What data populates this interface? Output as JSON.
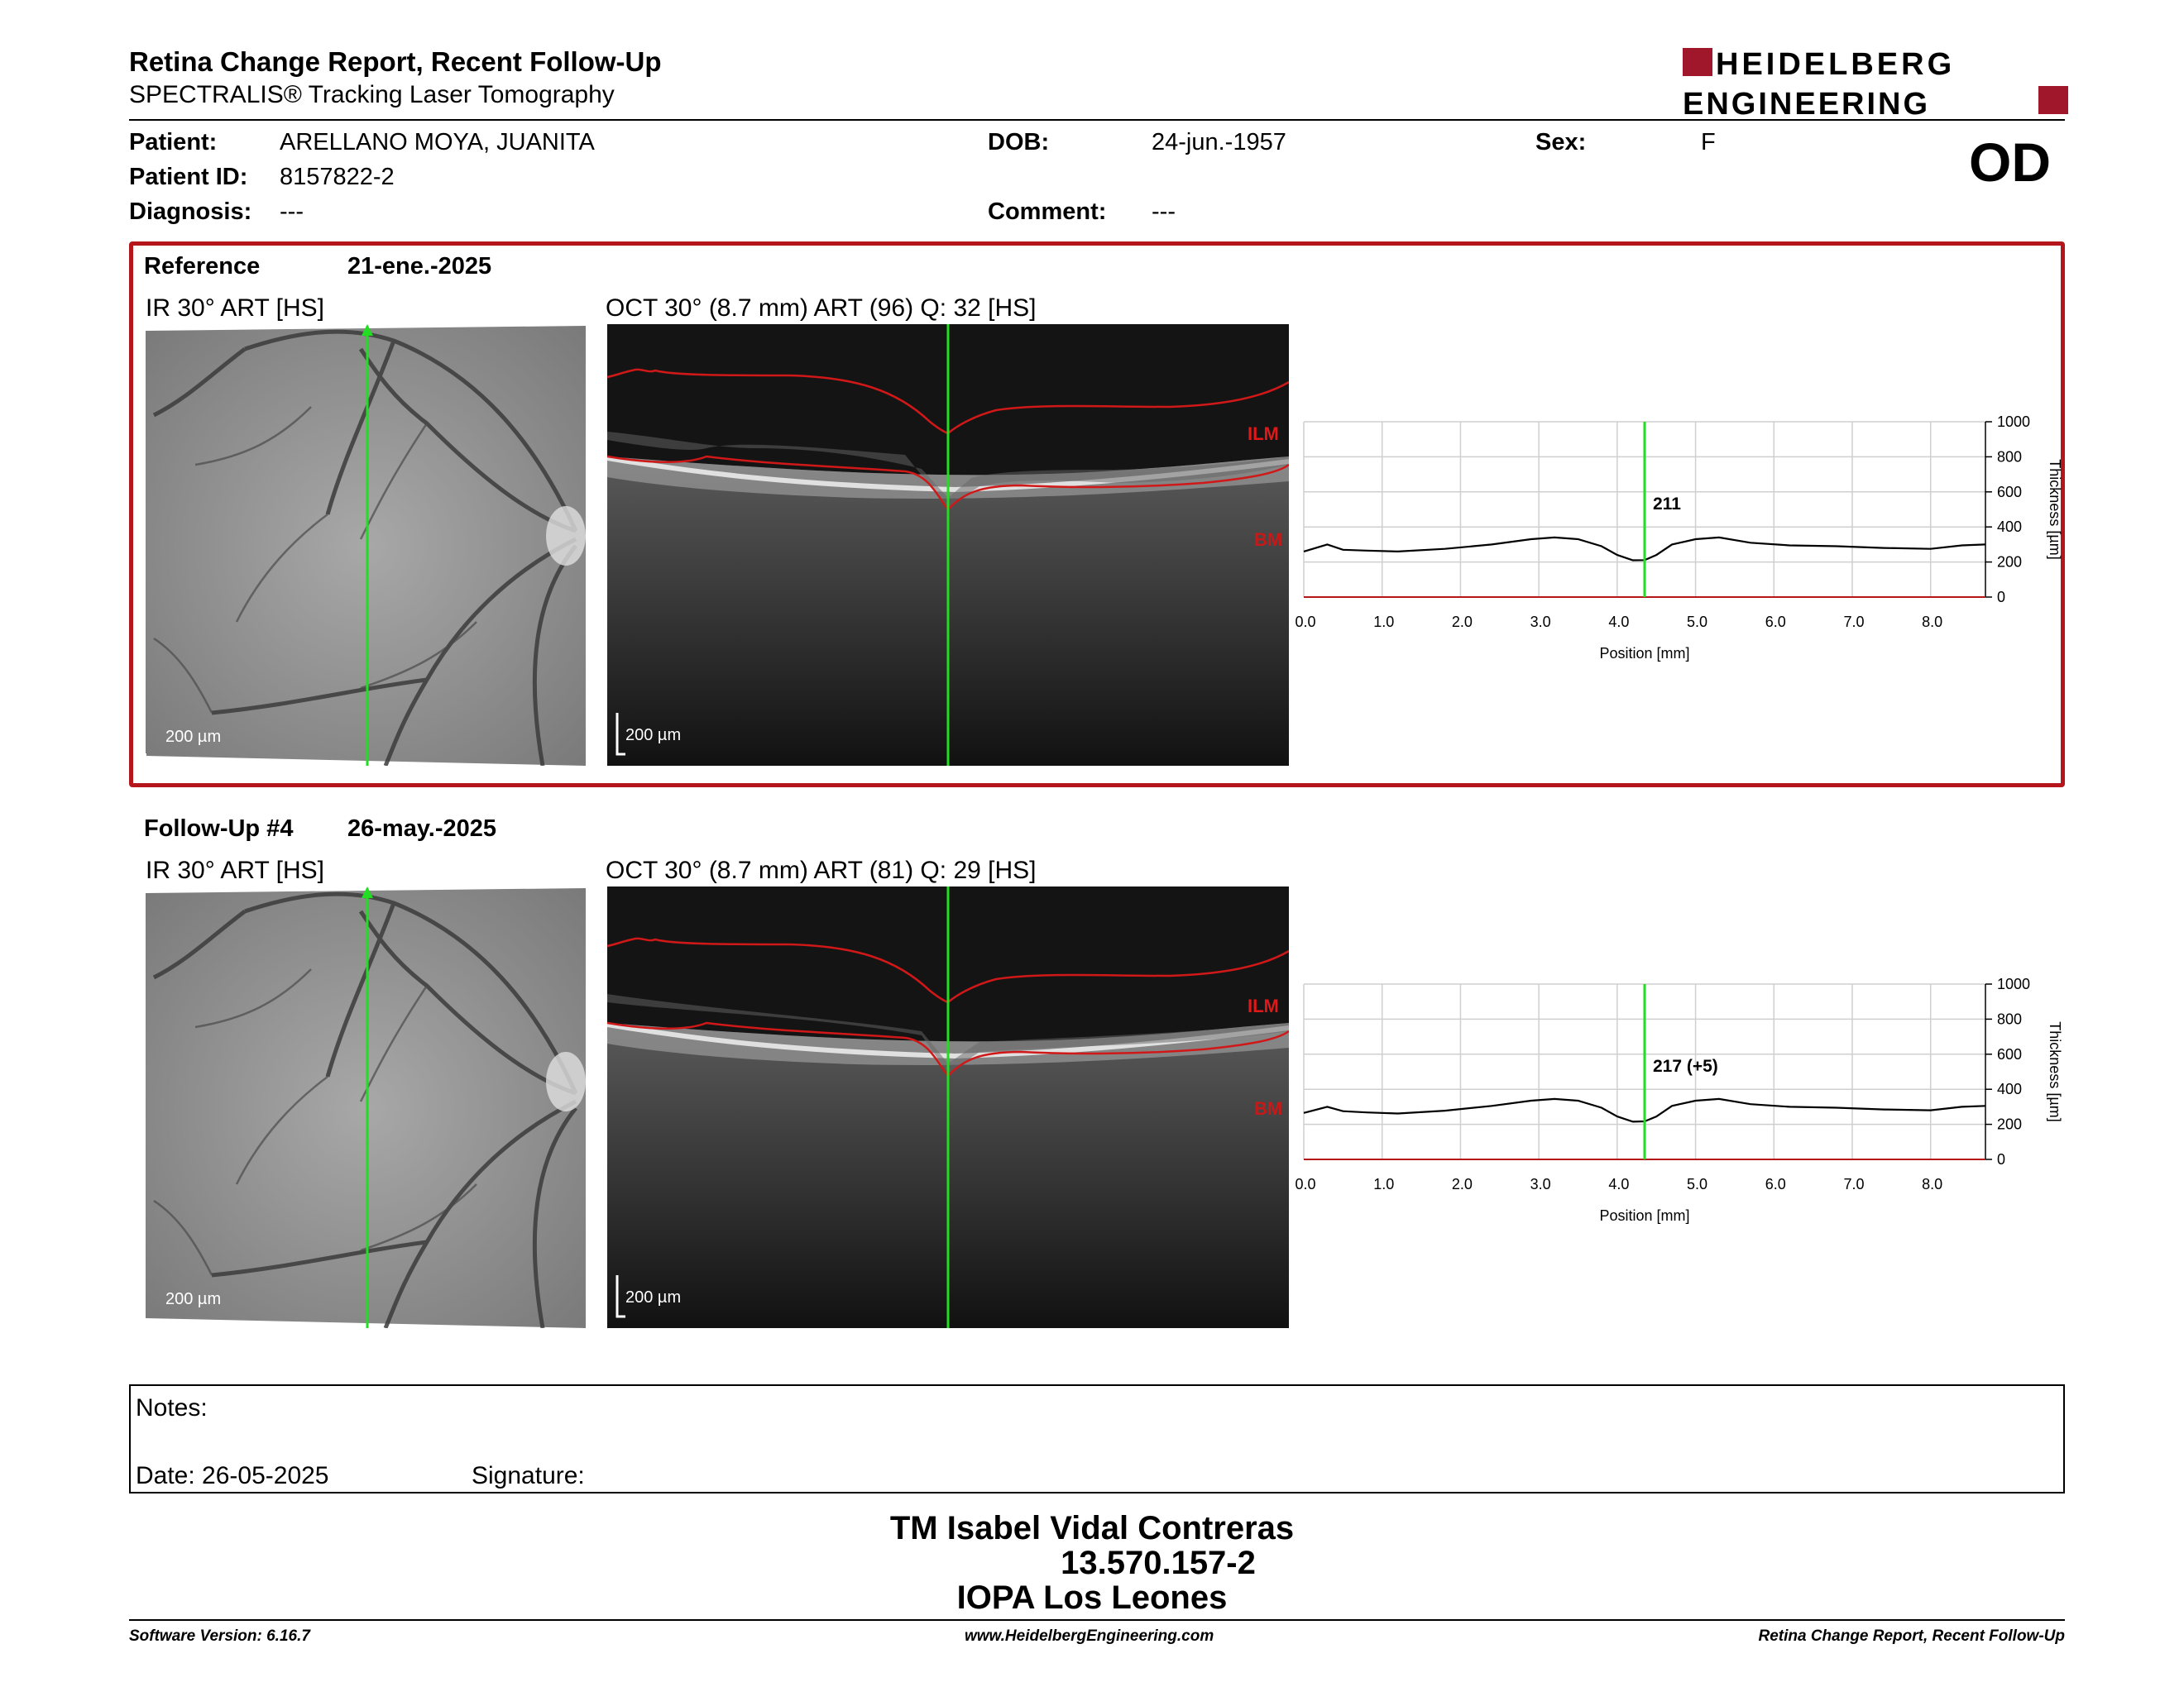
{
  "header": {
    "title": "Retina Change Report, Recent Follow-Up",
    "subtitle": "SPECTRALIS® Tracking Laser Tomography",
    "logo_line1": "HEIDELBERG",
    "logo_line2": "ENGINEERING",
    "brand_color": "#a0162a"
  },
  "patient": {
    "name_label": "Patient:",
    "name": "ARELLANO MOYA, JUANITA",
    "id_label": "Patient ID:",
    "id": "8157822-2",
    "diagnosis_label": "Diagnosis:",
    "diagnosis": "---",
    "dob_label": "DOB:",
    "dob": "24-jun.-1957",
    "comment_label": "Comment:",
    "comment": "---",
    "sex_label": "Sex:",
    "sex": "F",
    "eye": "OD"
  },
  "reference": {
    "label": "Reference",
    "date": "21-ene.-2025",
    "ir_label": "IR 30° ART [HS]",
    "oct_label": "OCT 30° (8.7 mm) ART (96) Q: 32 [HS]",
    "scale": "200 µm",
    "ilm": "ILM",
    "bm": "BM",
    "highlight_color": "#b5161b"
  },
  "followup": {
    "label": "Follow-Up #4",
    "date": "26-may.-2025",
    "ir_label": "IR 30° ART [HS]",
    "oct_label": "OCT 30° (8.7 mm) ART (81) Q: 29 [HS]",
    "scale": "200 µm",
    "ilm": "ILM",
    "bm": "BM"
  },
  "chart_data": [
    {
      "type": "line",
      "xlabel": "Position [mm]",
      "ylabel": "Thickness [µm]",
      "xlim": [
        0,
        8.7
      ],
      "ylim": [
        0,
        1000
      ],
      "xticks": [
        "0.0",
        "1.0",
        "2.0",
        "3.0",
        "4.0",
        "5.0",
        "6.0",
        "7.0",
        "8.0"
      ],
      "yticks": [
        "0",
        "200",
        "400",
        "600",
        "800",
        "1000"
      ],
      "marker_x": 4.35,
      "marker_label": "211",
      "grid": true,
      "x": [
        0.0,
        0.3,
        0.5,
        0.8,
        1.2,
        1.8,
        2.4,
        2.9,
        3.2,
        3.5,
        3.8,
        4.0,
        4.2,
        4.35,
        4.5,
        4.7,
        5.0,
        5.3,
        5.7,
        6.2,
        6.8,
        7.4,
        8.0,
        8.4,
        8.7
      ],
      "y": [
        260,
        300,
        270,
        265,
        260,
        275,
        300,
        330,
        340,
        330,
        290,
        240,
        210,
        211,
        240,
        300,
        330,
        340,
        310,
        295,
        290,
        280,
        275,
        295,
        300
      ]
    },
    {
      "type": "line",
      "xlabel": "Position [mm]",
      "ylabel": "Thickness [µm]",
      "xlim": [
        0,
        8.7
      ],
      "ylim": [
        0,
        1000
      ],
      "xticks": [
        "0.0",
        "1.0",
        "2.0",
        "3.0",
        "4.0",
        "5.0",
        "6.0",
        "7.0",
        "8.0"
      ],
      "yticks": [
        "0",
        "200",
        "400",
        "600",
        "800",
        "1000"
      ],
      "marker_x": 4.35,
      "marker_label": "217 (+5)",
      "grid": true,
      "x": [
        0.0,
        0.3,
        0.5,
        0.8,
        1.2,
        1.8,
        2.4,
        2.9,
        3.2,
        3.5,
        3.8,
        4.0,
        4.2,
        4.35,
        4.5,
        4.7,
        5.0,
        5.3,
        5.7,
        6.2,
        6.8,
        7.4,
        8.0,
        8.4,
        8.7
      ],
      "y": [
        265,
        300,
        275,
        268,
        262,
        278,
        305,
        335,
        345,
        335,
        295,
        245,
        215,
        217,
        245,
        305,
        335,
        345,
        315,
        300,
        295,
        285,
        280,
        300,
        305
      ]
    }
  ],
  "notes": {
    "label": "Notes:",
    "date_label": "Date: 26-05-2025",
    "signature_label": "Signature:"
  },
  "signature": {
    "name": "TM Isabel Vidal Contreras",
    "rut": "13.570.157-2",
    "institution": "IOPA Los Leones"
  },
  "footer": {
    "software": "Software Version: 6.16.7",
    "url": "www.HeidelbergEngineering.com",
    "report": "Retina Change Report, Recent Follow-Up"
  }
}
